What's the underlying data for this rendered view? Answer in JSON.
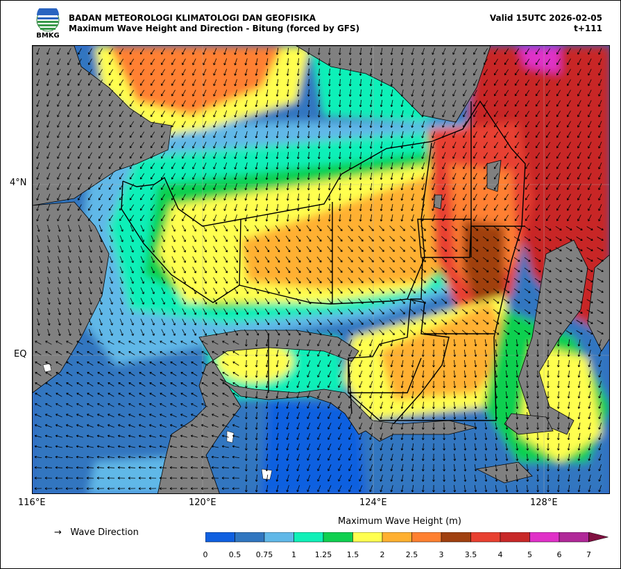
{
  "header": {
    "org_name": "BADAN METEOROLOGI KLIMATOLOGI DAN GEOFISIKA",
    "product_title": "Maximum Wave Height and Direction - Bitung (forced by GFS)",
    "valid_time": "Valid 15UTC 2026-02-05",
    "forecast_step": "t+111",
    "logo_text": "BMKG"
  },
  "map": {
    "lat_labels": [
      "4°N",
      "EQ"
    ],
    "lon_labels": [
      "116°E",
      "120°E",
      "124°E",
      "128°E"
    ],
    "land_color": "#808080",
    "grid": true
  },
  "legend": {
    "arrow_glyph": "→",
    "direction_label": "Wave Direction"
  },
  "colorbar": {
    "title": "Maximum Wave Height (m)",
    "ticks": [
      "0",
      "0.5",
      "0.75",
      "1",
      "1.25",
      "1.5",
      "2",
      "2.5",
      "3",
      "3.5",
      "4",
      "5",
      "6",
      "7"
    ],
    "colors": [
      "#1060e0",
      "#3076c0",
      "#60b8e8",
      "#10f0b8",
      "#10d050",
      "#ffff50",
      "#ffb030",
      "#ff8030",
      "#a04010",
      "#e84030",
      "#c82828",
      "#e030c8",
      "#b02898"
    ],
    "extend_color": "#801040"
  }
}
